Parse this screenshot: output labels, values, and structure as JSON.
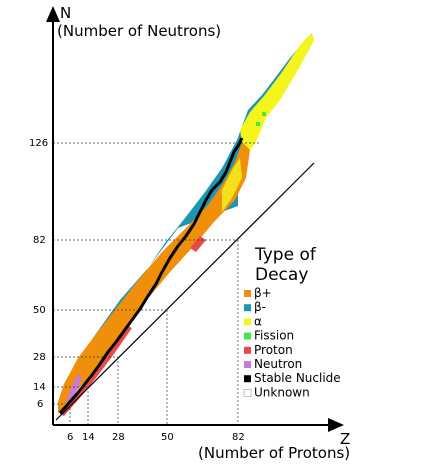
{
  "axes": {
    "y_letter": "N",
    "y_title": "(Number of Neutrons)",
    "x_letter": "Z",
    "x_title": "(Number of Protons)"
  },
  "magic_numbers": [
    6,
    14,
    28,
    50,
    82,
    126
  ],
  "x_tick_labels": [
    "6",
    "14",
    "28",
    "50",
    "82"
  ],
  "y_tick_labels": [
    "6",
    "14",
    "28",
    "50",
    "82",
    "126"
  ],
  "legend": {
    "title_line1": "Type of",
    "title_line2": "Decay",
    "items": [
      {
        "label": "β+",
        "color": "#f0900a"
      },
      {
        "label": "β-",
        "color": "#1b97b3"
      },
      {
        "label": "α",
        "color": "#f5f51e"
      },
      {
        "label": "Fission",
        "color": "#4ee24e"
      },
      {
        "label": "Proton",
        "color": "#e84a4a"
      },
      {
        "label": "Neutron",
        "color": "#c77ad9"
      },
      {
        "label": "Stable Nuclide",
        "color": "#000000"
      },
      {
        "label": "Unknown",
        "color": "#ffffff"
      }
    ]
  },
  "colors": {
    "beta_plus": "#f0900a",
    "beta_minus": "#1b97b3",
    "alpha": "#f5f51e",
    "stable": "#000000"
  }
}
